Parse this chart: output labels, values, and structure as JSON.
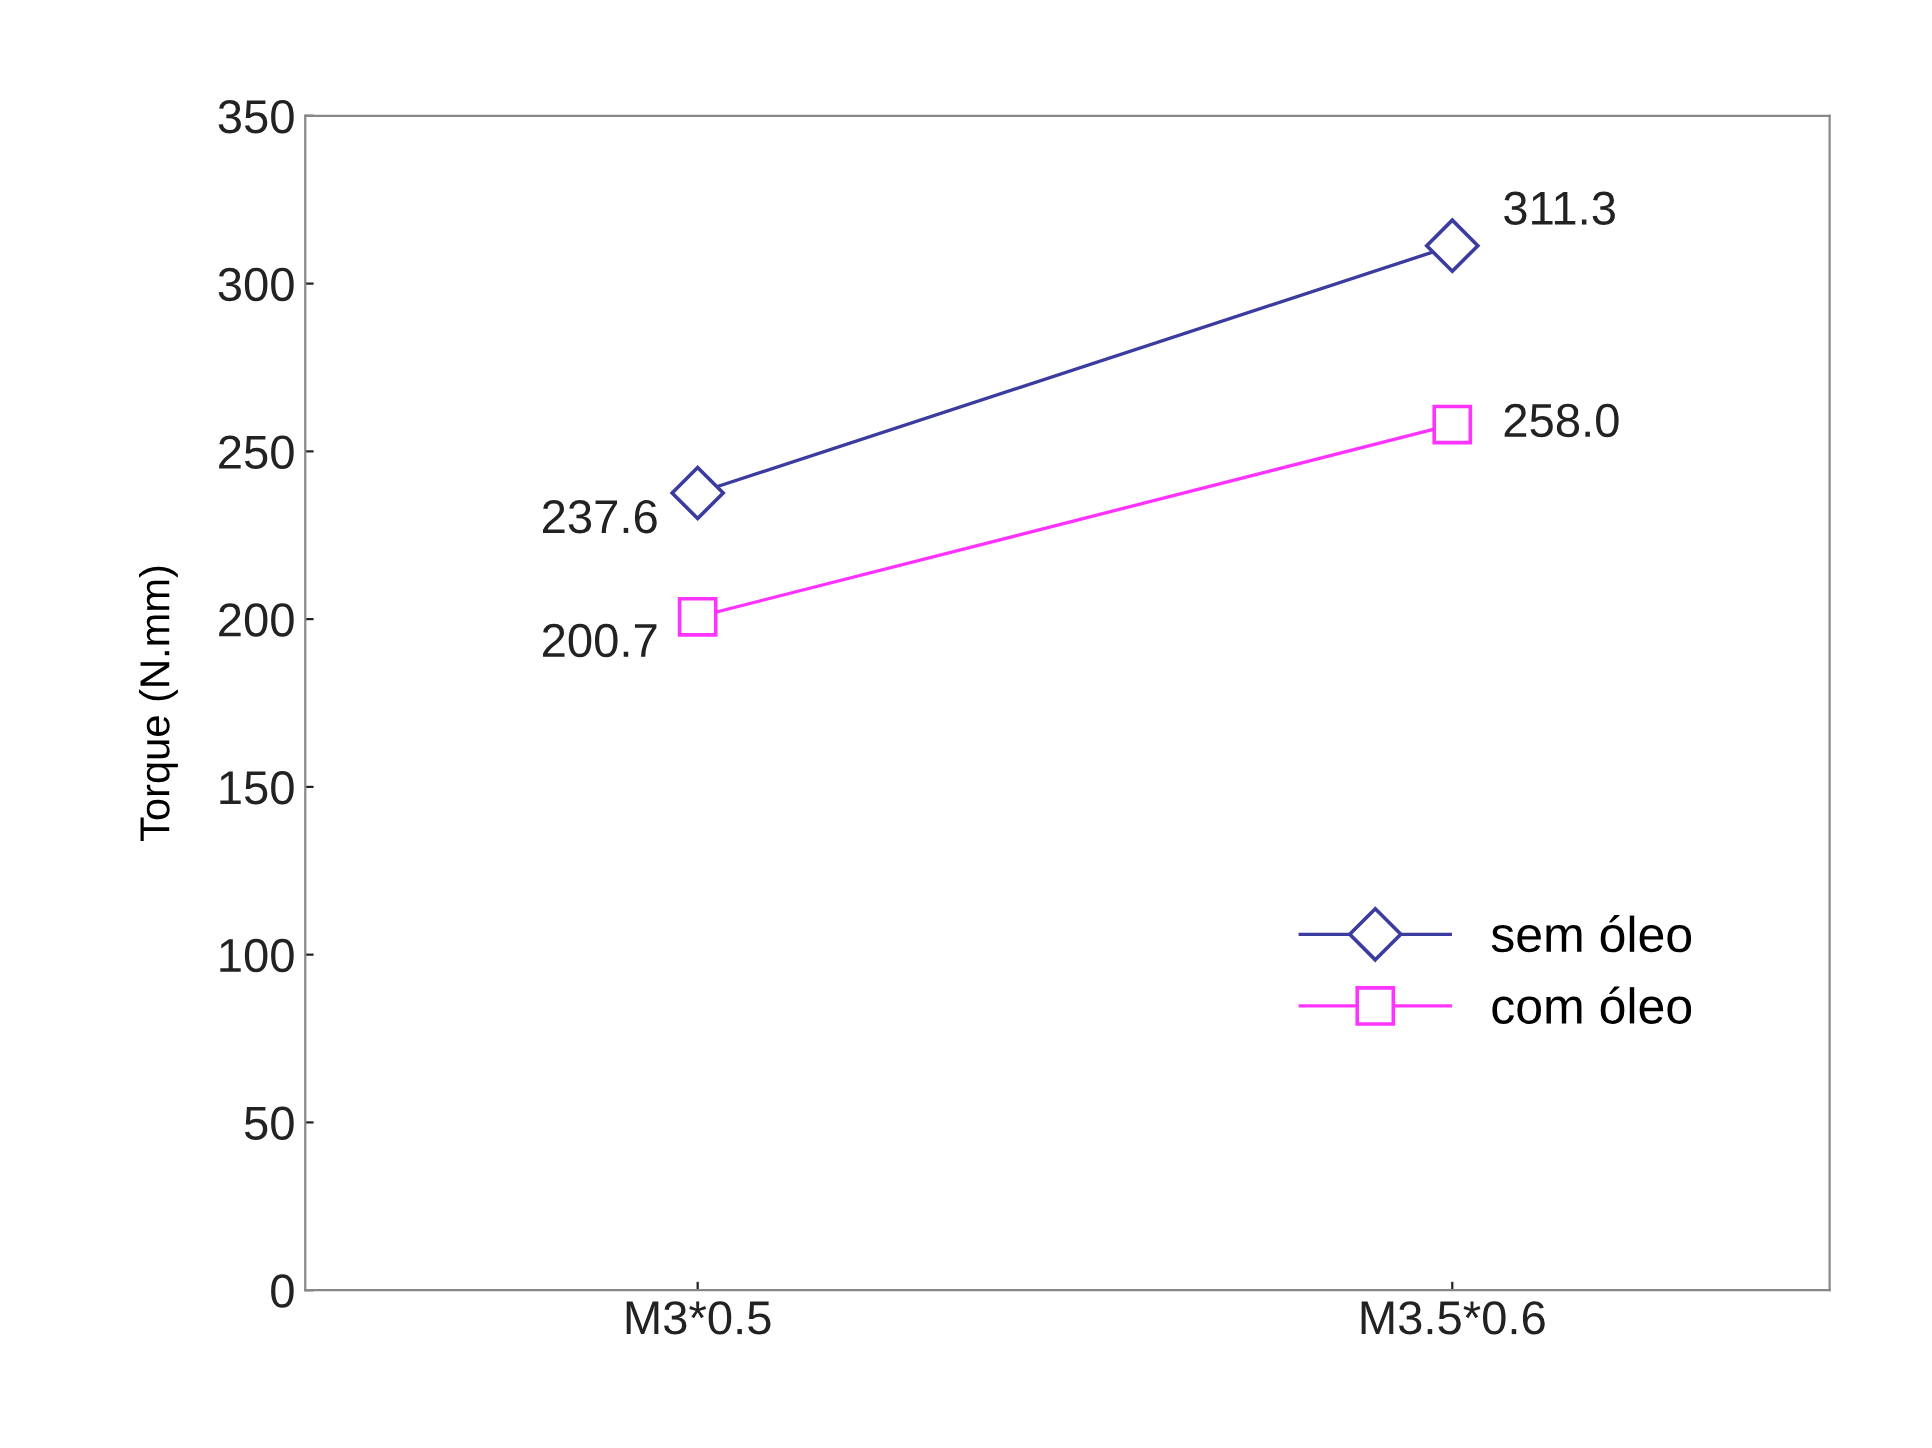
{
  "chart_data": {
    "type": "line",
    "ylabel": "Torque (N.mm)",
    "categories": [
      "M3*0.5",
      "M3.5*0.6"
    ],
    "series": [
      {
        "name": "sem óleo",
        "color": "#3c3ca0",
        "values": [
          237.6,
          311.3
        ],
        "value_labels": [
          "237.6",
          "311.3"
        ],
        "marker": "diamond"
      },
      {
        "name": "com óleo",
        "color": "#ff33ff",
        "values": [
          200.7,
          258.0
        ],
        "value_labels": [
          "200.7",
          "258.0"
        ],
        "marker": "square"
      }
    ],
    "ylim": [
      0,
      350
    ],
    "yticks": [
      0,
      50,
      100,
      150,
      200,
      250,
      300,
      350
    ],
    "grid": false,
    "legend": "bottom right",
    "line_style": "solid"
  }
}
